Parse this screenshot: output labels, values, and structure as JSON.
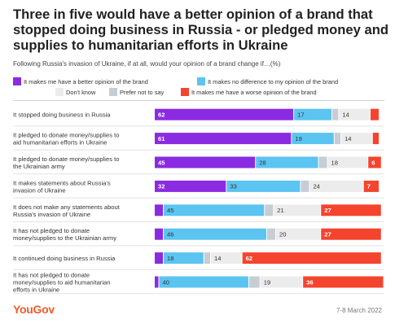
{
  "title": "Three in five would have a better opinion of a brand that stopped doing business in Russia - or pledged money and supplies to humanitarian efforts in Ukraine",
  "subtitle": "Following Russia's invasion of Ukraine, if at all, would your opinion of a brand change if…(%)",
  "legend": [
    {
      "label": "It makes me have a better opinion of the brand",
      "color": "#8a2be2"
    },
    {
      "label": "It makes no difference to my opinion of the brand",
      "color": "#5bc4f0"
    },
    {
      "label": "Don't know",
      "color": "#ececec"
    },
    {
      "label": "Prefer not to say",
      "color": "#c8ccd4"
    },
    {
      "label": "It makes me have a worse opinion of the brand",
      "color": "#f4442e"
    }
  ],
  "chart_data": {
    "type": "bar",
    "orientation": "horizontal",
    "stacked": true,
    "grid": false,
    "legend_position": "top",
    "xlim": [
      0,
      100
    ],
    "categories": [
      "It stopped doing business in Russia",
      "It pledged to donate money/supplies to aid humanitarian efforts in Ukraine",
      "It pledged to donate money/supplies to the Ukrainian army",
      "It makes statements about Russia's invasion of Ukraine",
      "It does not make any statements about Russia's invasion of Ukraine",
      "It has not pledged to donate money/supplies to the Ukrainian army",
      "It continued doing business in Russia",
      "It has not pledged to donate money/supplies to aid humanitarian efforts in Ukraine"
    ],
    "series": [
      {
        "name": "It makes me have a better opinion of the brand",
        "color": "#8a2be2",
        "label_color": "#ffffff",
        "values": [
          62,
          61,
          45,
          32,
          4,
          4,
          4,
          2
        ]
      },
      {
        "name": "It makes no difference to my opinion of the brand",
        "color": "#5bc4f0",
        "label_color": "#333333",
        "values": [
          17,
          19,
          28,
          33,
          45,
          46,
          18,
          40
        ]
      },
      {
        "name": "Prefer not to say",
        "color": "#c8ccd4",
        "label_color": "#333333",
        "values": [
          3,
          3,
          4,
          4,
          4,
          4,
          3,
          5
        ]
      },
      {
        "name": "Don't know",
        "color": "#ececec",
        "label_color": "#333333",
        "values": [
          14,
          14,
          18,
          24,
          21,
          20,
          14,
          19
        ]
      },
      {
        "name": "It makes me have a worse opinion of the brand",
        "color": "#f4442e",
        "label_color": "#ffffff",
        "values": [
          4,
          3,
          6,
          7,
          27,
          27,
          62,
          36
        ]
      }
    ],
    "data_labels": [
      [
        "62",
        "17",
        "",
        "14",
        ""
      ],
      [
        "61",
        "19",
        "",
        "14",
        ""
      ],
      [
        "45",
        "28",
        "",
        "18",
        "6"
      ],
      [
        "32",
        "33",
        "",
        "24",
        "7"
      ],
      [
        "",
        "45",
        "",
        "21",
        "27"
      ],
      [
        "",
        "46",
        "",
        "20",
        "27"
      ],
      [
        "",
        "18",
        "",
        "14",
        "62"
      ],
      [
        "",
        "40",
        "",
        "19",
        "36"
      ]
    ]
  },
  "footer": {
    "brand": "YouGov",
    "date": "7-8 March 2022"
  }
}
